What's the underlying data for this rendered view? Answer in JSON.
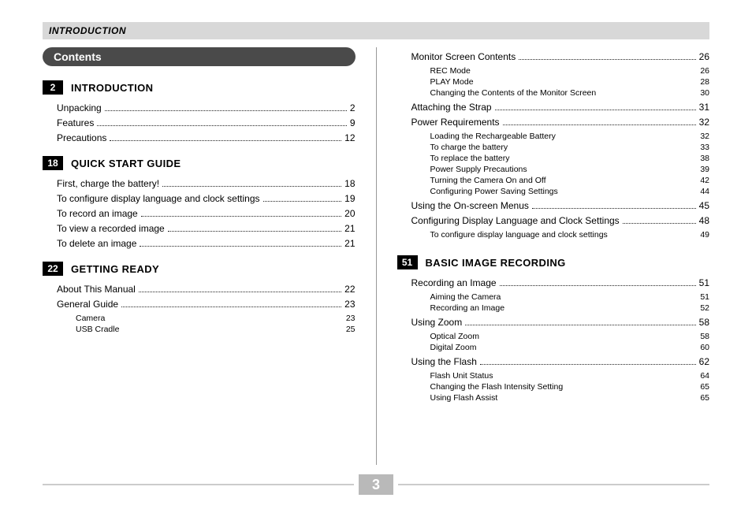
{
  "colors": {
    "headerBar": "#d8d8d8",
    "pill": "#4a4a4a",
    "pillText": "#ffffff",
    "pageBox": "#000000",
    "pageBoxText": "#ffffff",
    "footerLine": "#cccccc",
    "footerPageBg": "#b9b9b9",
    "text": "#000000"
  },
  "header": {
    "title": "INTRODUCTION"
  },
  "contentsLabel": "Contents",
  "footerPage": "3",
  "left": {
    "sections": [
      {
        "pageBox": "2",
        "title": "INTRODUCTION",
        "entries": [
          {
            "level": 1,
            "label": "Unpacking",
            "page": "2"
          },
          {
            "level": 1,
            "label": "Features",
            "page": "9"
          },
          {
            "level": 1,
            "label": "Precautions",
            "page": "12"
          }
        ]
      },
      {
        "pageBox": "18",
        "title": "QUICK START GUIDE",
        "entries": [
          {
            "level": 1,
            "label": "First, charge the battery!",
            "page": "18"
          },
          {
            "level": 1,
            "label": "To configure display language and clock settings",
            "page": "19"
          },
          {
            "level": 1,
            "label": "To record an image",
            "page": "20"
          },
          {
            "level": 1,
            "label": "To view a recorded image",
            "page": "21"
          },
          {
            "level": 1,
            "label": "To delete an image",
            "page": "21"
          }
        ]
      },
      {
        "pageBox": "22",
        "title": "GETTING READY",
        "entries": [
          {
            "level": 1,
            "label": "About This Manual",
            "page": "22"
          },
          {
            "level": 1,
            "label": "General Guide",
            "page": "23"
          },
          {
            "level": 2,
            "label": "Camera",
            "page": "23"
          },
          {
            "level": 2,
            "label": "USB Cradle",
            "page": "25"
          }
        ]
      }
    ]
  },
  "right": {
    "topEntries": [
      {
        "level": 1,
        "label": "Monitor Screen Contents",
        "page": "26"
      },
      {
        "level": 2,
        "label": "REC Mode",
        "page": "26"
      },
      {
        "level": 2,
        "label": "PLAY Mode",
        "page": "28"
      },
      {
        "level": 2,
        "label": "Changing the Contents of the Monitor Screen",
        "page": "30"
      },
      {
        "level": 1,
        "label": "Attaching the Strap",
        "page": "31"
      },
      {
        "level": 1,
        "label": "Power Requirements",
        "page": "32"
      },
      {
        "level": 2,
        "label": "Loading the Rechargeable Battery",
        "page": "32"
      },
      {
        "level": 2,
        "label": "To charge the battery",
        "page": "33"
      },
      {
        "level": 2,
        "label": "To replace the battery",
        "page": "38"
      },
      {
        "level": 2,
        "label": "Power Supply Precautions",
        "page": "39"
      },
      {
        "level": 2,
        "label": "Turning the Camera On and Off",
        "page": "42"
      },
      {
        "level": 2,
        "label": "Configuring Power Saving Settings",
        "page": "44"
      },
      {
        "level": 1,
        "label": "Using the On-screen Menus",
        "page": "45"
      },
      {
        "level": 1,
        "label": "Configuring Display Language and Clock Settings",
        "page": "48"
      },
      {
        "level": 2,
        "label": "To configure display language and clock settings",
        "page": "49"
      }
    ],
    "sections": [
      {
        "pageBox": "51",
        "title": "BASIC IMAGE RECORDING",
        "entries": [
          {
            "level": 1,
            "label": "Recording an Image",
            "page": "51"
          },
          {
            "level": 2,
            "label": "Aiming the Camera",
            "page": "51"
          },
          {
            "level": 2,
            "label": "Recording an Image",
            "page": "52"
          },
          {
            "level": 1,
            "label": "Using Zoom",
            "page": "58"
          },
          {
            "level": 2,
            "label": "Optical Zoom",
            "page": "58"
          },
          {
            "level": 2,
            "label": "Digital Zoom",
            "page": "60"
          },
          {
            "level": 1,
            "label": "Using the Flash",
            "page": "62"
          },
          {
            "level": 2,
            "label": "Flash Unit Status",
            "page": "64"
          },
          {
            "level": 2,
            "label": "Changing the Flash Intensity Setting",
            "page": "65"
          },
          {
            "level": 2,
            "label": "Using Flash Assist",
            "page": "65"
          }
        ]
      }
    ]
  }
}
